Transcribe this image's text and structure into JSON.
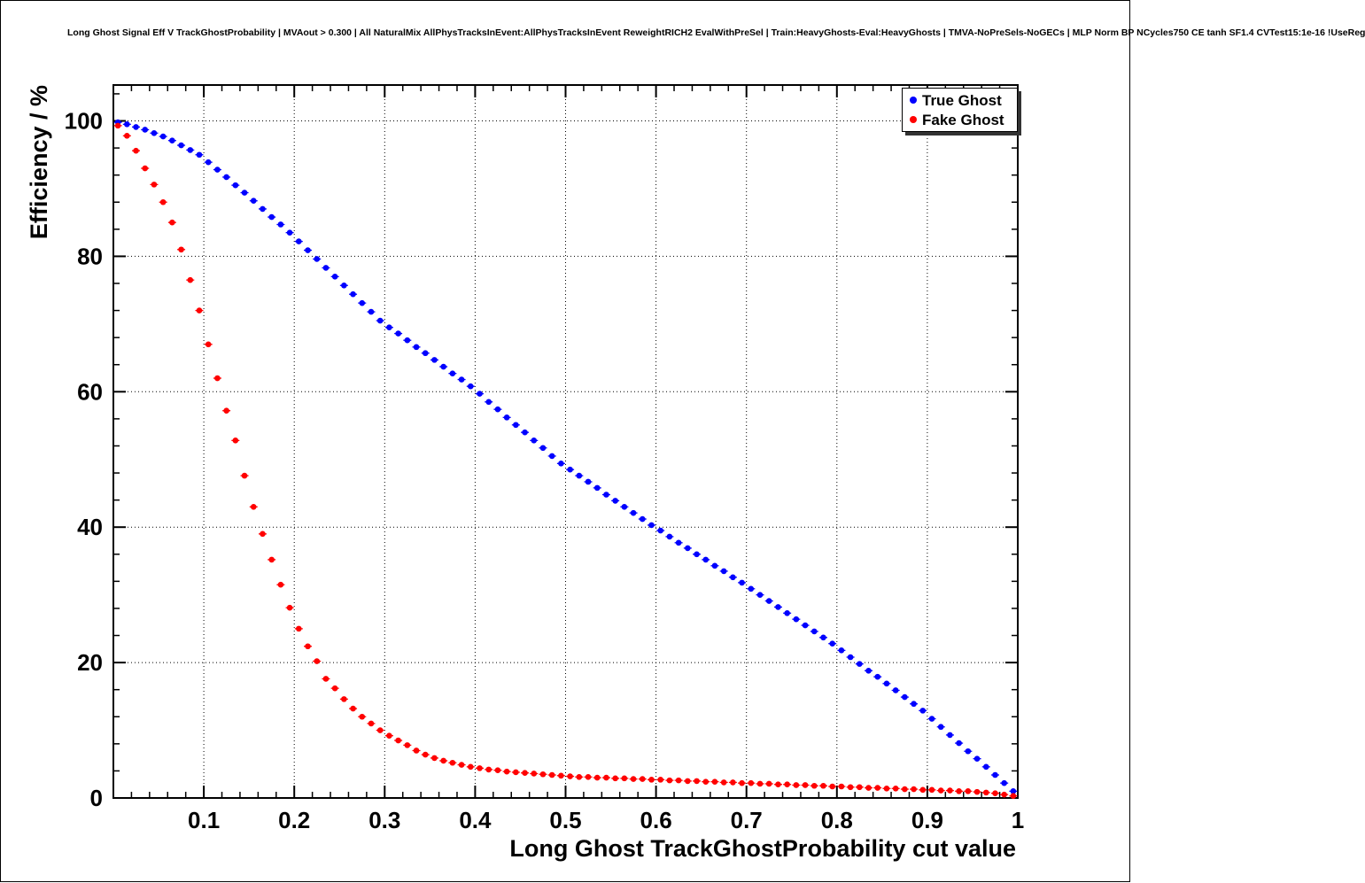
{
  "chart_data": {
    "type": "scatter",
    "title": "Long Ghost Signal Eff V TrackGhostProbability | MVAout > 0.300 | All NaturalMix AllPhysTracksInEvent:AllPhysTracksInEvent ReweightRICH2 EvalWithPreSel | Train:HeavyGhosts-Eval:HeavyGhosts | TMVA-NoPreSels-NoGECs | MLP Norm BP NCycles750 CE tanh SF1.4 CVTest15:1e-16 !UseReg",
    "xlabel": "Long Ghost TrackGhostProbability cut value",
    "ylabel": "Efficiency / %",
    "xlim": [
      0,
      1
    ],
    "ylim": [
      0,
      105.3
    ],
    "grid": true,
    "grid_style": "dotted",
    "x_ticks": [
      0.1,
      0.2,
      0.3,
      0.4,
      0.5,
      0.6,
      0.7,
      0.8,
      0.9,
      1
    ],
    "x_tick_labels": [
      "0.1",
      "0.2",
      "0.3",
      "0.4",
      "0.5",
      "0.6",
      "0.7",
      "0.8",
      "0.9",
      "1"
    ],
    "y_ticks": [
      0,
      20,
      40,
      60,
      80,
      100
    ],
    "y_tick_labels": [
      "0",
      "20",
      "40",
      "60",
      "80",
      "100"
    ],
    "x_minor_step": 0.02,
    "y_minor_step": 4,
    "legend": {
      "position": "top-right",
      "entries": [
        {
          "label": "True Ghost",
          "color": "#0000ff"
        },
        {
          "label": "Fake Ghost",
          "color": "#ff0000"
        }
      ]
    },
    "x": [
      0.005,
      0.015,
      0.025,
      0.035,
      0.045,
      0.055,
      0.065,
      0.075,
      0.085,
      0.095,
      0.105,
      0.115,
      0.125,
      0.135,
      0.145,
      0.155,
      0.165,
      0.175,
      0.185,
      0.195,
      0.205,
      0.215,
      0.225,
      0.235,
      0.245,
      0.255,
      0.265,
      0.275,
      0.285,
      0.295,
      0.305,
      0.315,
      0.325,
      0.335,
      0.345,
      0.355,
      0.365,
      0.375,
      0.385,
      0.395,
      0.405,
      0.415,
      0.425,
      0.435,
      0.445,
      0.455,
      0.465,
      0.475,
      0.485,
      0.495,
      0.505,
      0.515,
      0.525,
      0.535,
      0.545,
      0.555,
      0.565,
      0.575,
      0.585,
      0.595,
      0.605,
      0.615,
      0.625,
      0.635,
      0.645,
      0.655,
      0.665,
      0.675,
      0.685,
      0.695,
      0.705,
      0.715,
      0.725,
      0.735,
      0.745,
      0.755,
      0.765,
      0.775,
      0.785,
      0.795,
      0.805,
      0.815,
      0.825,
      0.835,
      0.845,
      0.855,
      0.865,
      0.875,
      0.885,
      0.895,
      0.905,
      0.915,
      0.925,
      0.935,
      0.945,
      0.955,
      0.965,
      0.975,
      0.985,
      0.995
    ],
    "series": [
      {
        "name": "True Ghost",
        "color": "#0000ff",
        "marker": "circle",
        "values": [
          99.8,
          99.5,
          99.1,
          98.7,
          98.2,
          97.7,
          97.1,
          96.4,
          95.7,
          95.0,
          93.9,
          92.8,
          91.7,
          90.5,
          89.4,
          88.2,
          87.0,
          85.8,
          84.7,
          83.5,
          82.2,
          80.9,
          79.6,
          78.3,
          77.0,
          75.7,
          74.4,
          73.1,
          71.8,
          70.5,
          69.5,
          68.6,
          67.6,
          66.6,
          65.7,
          64.7,
          63.7,
          62.7,
          61.8,
          60.8,
          59.7,
          58.5,
          57.4,
          56.2,
          55.1,
          54.0,
          52.8,
          51.7,
          50.5,
          49.4,
          48.5,
          47.6,
          46.7,
          45.8,
          44.8,
          43.9,
          43.0,
          42.1,
          41.2,
          40.3,
          39.5,
          38.6,
          37.7,
          36.9,
          36.0,
          35.2,
          34.3,
          33.5,
          32.6,
          31.8,
          30.9,
          30.0,
          29.1,
          28.2,
          27.3,
          26.4,
          25.5,
          24.6,
          23.7,
          22.8,
          21.8,
          20.8,
          19.8,
          18.8,
          17.9,
          16.9,
          15.9,
          14.9,
          13.9,
          12.9,
          11.7,
          10.5,
          9.3,
          8.1,
          6.9,
          5.8,
          4.6,
          3.4,
          2.2,
          1.0
        ]
      },
      {
        "name": "Fake Ghost",
        "color": "#ff0000",
        "marker": "circle",
        "values": [
          99.3,
          97.8,
          95.6,
          93.0,
          90.6,
          88.0,
          85.0,
          81.0,
          76.5,
          72.0,
          67.0,
          62.0,
          57.2,
          52.8,
          47.6,
          43.0,
          39.0,
          35.2,
          31.5,
          28.1,
          25.0,
          22.4,
          20.2,
          17.6,
          16.2,
          14.6,
          13.2,
          12.0,
          11.0,
          10.0,
          9.2,
          8.5,
          7.8,
          7.0,
          6.4,
          5.9,
          5.5,
          5.2,
          4.9,
          4.6,
          4.4,
          4.2,
          4.1,
          3.9,
          3.8,
          3.7,
          3.6,
          3.5,
          3.4,
          3.3,
          3.2,
          3.1,
          3.1,
          3.0,
          3.0,
          2.9,
          2.9,
          2.8,
          2.8,
          2.7,
          2.7,
          2.6,
          2.6,
          2.5,
          2.5,
          2.4,
          2.4,
          2.3,
          2.3,
          2.2,
          2.2,
          2.1,
          2.1,
          2.0,
          2.0,
          1.9,
          1.9,
          1.8,
          1.8,
          1.7,
          1.7,
          1.6,
          1.6,
          1.5,
          1.5,
          1.4,
          1.4,
          1.3,
          1.3,
          1.2,
          1.2,
          1.1,
          1.1,
          1.0,
          1.0,
          0.9,
          0.8,
          0.7,
          0.5,
          0.3
        ]
      }
    ]
  }
}
